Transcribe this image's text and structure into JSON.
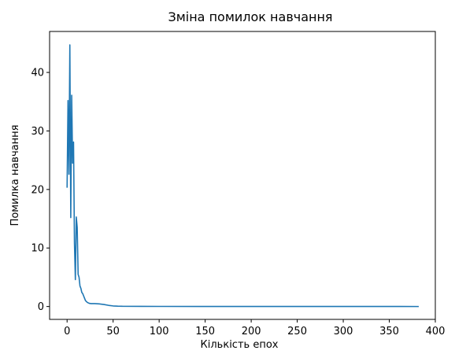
{
  "chart_data": {
    "type": "line",
    "title": "Зміна помилок навчання",
    "xlabel": "Кількість епох",
    "ylabel": "Помилка навчання",
    "xlim": [
      -19,
      400
    ],
    "ylim": [
      -2.2,
      47
    ],
    "xticks": [
      0,
      50,
      100,
      150,
      200,
      250,
      300,
      350,
      400
    ],
    "yticks": [
      0,
      10,
      20,
      30,
      40
    ],
    "grid": false,
    "series": [
      {
        "color": "#1f77b4",
        "x": [
          0,
          1,
          2,
          3,
          4,
          5,
          6,
          7,
          8,
          9,
          10,
          11,
          12,
          13,
          14,
          15,
          16,
          17,
          18,
          19,
          20,
          22,
          24,
          26,
          30,
          35,
          40,
          45,
          50,
          55,
          60,
          80,
          100,
          150,
          200,
          250,
          300,
          350,
          382
        ],
        "y": [
          20.3,
          35.2,
          22.6,
          44.7,
          15.2,
          36.1,
          24.5,
          28.1,
          10.8,
          4.6,
          15.3,
          13.5,
          5.5,
          5.0,
          3.5,
          3.1,
          2.4,
          2.2,
          1.8,
          1.4,
          1.0,
          0.7,
          0.55,
          0.5,
          0.5,
          0.45,
          0.35,
          0.2,
          0.1,
          0.06,
          0.04,
          0.03,
          0.02,
          0.01,
          0.01,
          0.01,
          0.005,
          0.005,
          0.0
        ]
      }
    ]
  }
}
